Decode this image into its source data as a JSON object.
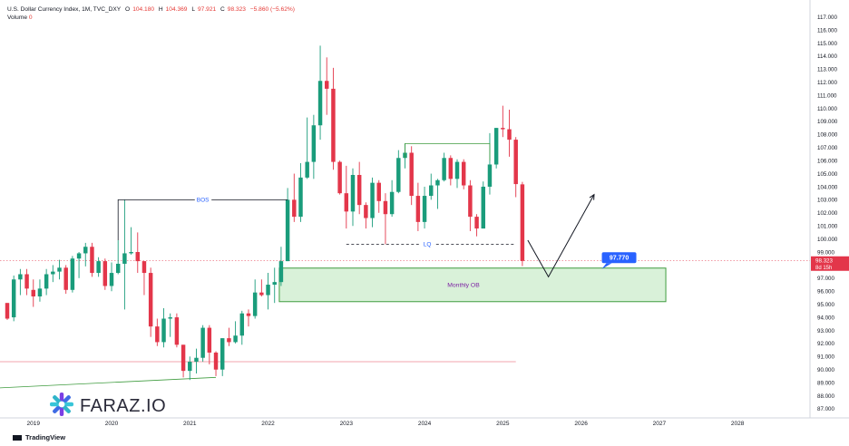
{
  "header": {
    "title": "U.S. Dollar Currency Index, 1M, TVC_DXY",
    "open_label": "O",
    "open": "104.180",
    "high_label": "H",
    "high": "104.369",
    "low_label": "L",
    "low": "97.921",
    "close_label": "C",
    "close": "98.323",
    "change": "−5.860 (−5.62%)",
    "volume_label": "Volume",
    "volume": "0"
  },
  "footer": {
    "brand": "TradingView"
  },
  "logo": {
    "text": "FARAZ.IO"
  },
  "colors": {
    "up": "#1a9c7b",
    "down": "#e3364a",
    "ob_fill": "#d9f1d9",
    "ob_stroke": "#3f9c3f",
    "accent": "#2962ff"
  },
  "chart_data": {
    "type": "candlestick",
    "title": "U.S. Dollar Currency Index, 1M, TVC_DXY",
    "interval": "1M",
    "y_ticks": [
      "87.000",
      "88.000",
      "89.000",
      "90.000",
      "91.000",
      "92.000",
      "93.000",
      "94.000",
      "95.000",
      "96.000",
      "97.000",
      "98.000",
      "99.000",
      "100.000",
      "101.000",
      "102.000",
      "103.000",
      "104.000",
      "105.000",
      "106.000",
      "107.000",
      "108.000",
      "109.000",
      "110.000",
      "111.000",
      "112.000",
      "113.000",
      "114.000",
      "115.000",
      "116.000",
      "117.000"
    ],
    "y_range": [
      86.3,
      117.6
    ],
    "x_ticks": [
      "2019",
      "2020",
      "2021",
      "2022",
      "2023",
      "2024",
      "2025",
      "2026",
      "2027",
      "2028"
    ],
    "x_range": [
      "2018-09",
      "2028-11"
    ],
    "last_price": "98.323",
    "countdown": "8d 15h",
    "candles": [
      [
        "2018-09",
        95.1,
        95.1,
        93.8,
        93.9
      ],
      [
        "2018-10",
        94.0,
        97.2,
        93.7,
        96.9
      ],
      [
        "2018-11",
        96.9,
        97.7,
        95.7,
        97.3
      ],
      [
        "2018-12",
        97.3,
        97.7,
        95.7,
        96.2
      ],
      [
        "2019-01",
        96.1,
        96.9,
        94.8,
        95.6
      ],
      [
        "2019-02",
        95.6,
        96.9,
        95.2,
        96.2
      ],
      [
        "2019-03",
        96.2,
        97.7,
        95.7,
        97.3
      ],
      [
        "2019-04",
        97.3,
        98.0,
        96.7,
        97.5
      ],
      [
        "2019-05",
        97.5,
        98.4,
        96.9,
        97.8
      ],
      [
        "2019-06",
        97.8,
        98.0,
        95.8,
        96.1
      ],
      [
        "2019-07",
        96.1,
        98.7,
        95.9,
        98.5
      ],
      [
        "2019-08",
        98.5,
        99.0,
        97.0,
        98.9
      ],
      [
        "2019-09",
        98.9,
        99.7,
        97.9,
        99.4
      ],
      [
        "2019-10",
        99.4,
        99.7,
        97.1,
        97.4
      ],
      [
        "2019-11",
        97.4,
        98.6,
        97.1,
        98.3
      ],
      [
        "2019-12",
        98.3,
        98.5,
        96.1,
        96.4
      ],
      [
        "2020-01",
        96.4,
        98.2,
        96.0,
        97.4
      ],
      [
        "2020-02",
        97.4,
        99.9,
        97.3,
        98.1
      ],
      [
        "2020-03",
        98.1,
        103.0,
        94.6,
        98.9
      ],
      [
        "2020-04",
        98.9,
        100.9,
        98.8,
        99.0
      ],
      [
        "2020-05",
        99.0,
        100.5,
        97.4,
        98.3
      ],
      [
        "2020-06",
        98.3,
        98.3,
        95.7,
        97.4
      ],
      [
        "2020-07",
        97.4,
        97.8,
        92.5,
        93.3
      ],
      [
        "2020-08",
        93.3,
        93.9,
        91.8,
        92.1
      ],
      [
        "2020-09",
        92.1,
        94.7,
        91.7,
        93.9
      ],
      [
        "2020-10",
        93.9,
        94.3,
        92.5,
        94.0
      ],
      [
        "2020-11",
        94.0,
        94.3,
        91.7,
        91.9
      ],
      [
        "2020-12",
        91.9,
        91.9,
        89.4,
        89.9
      ],
      [
        "2021-01",
        89.9,
        91.0,
        89.2,
        90.6
      ],
      [
        "2021-02",
        90.6,
        91.6,
        89.7,
        90.9
      ],
      [
        "2021-03",
        90.9,
        93.4,
        90.6,
        93.2
      ],
      [
        "2021-04",
        93.2,
        93.4,
        90.4,
        91.3
      ],
      [
        "2021-05",
        91.3,
        91.4,
        89.5,
        90.0
      ],
      [
        "2021-06",
        90.0,
        92.4,
        89.5,
        92.4
      ],
      [
        "2021-07",
        92.4,
        93.2,
        91.8,
        92.1
      ],
      [
        "2021-08",
        92.1,
        93.7,
        92.0,
        92.6
      ],
      [
        "2021-09",
        92.6,
        94.5,
        91.9,
        94.3
      ],
      [
        "2021-10",
        94.3,
        94.6,
        93.3,
        94.1
      ],
      [
        "2021-11",
        94.1,
        96.9,
        93.9,
        95.9
      ],
      [
        "2021-12",
        95.9,
        96.9,
        95.6,
        95.7
      ],
      [
        "2022-01",
        95.7,
        97.4,
        94.6,
        96.5
      ],
      [
        "2022-02",
        96.5,
        97.8,
        95.1,
        96.7
      ],
      [
        "2022-03",
        96.7,
        99.4,
        96.4,
        98.3
      ],
      [
        "2022-04",
        98.3,
        103.9,
        98.3,
        103.0
      ],
      [
        "2022-05",
        103.0,
        105.0,
        101.3,
        101.7
      ],
      [
        "2022-06",
        101.7,
        105.8,
        101.3,
        104.7
      ],
      [
        "2022-07",
        104.7,
        109.3,
        104.6,
        105.9
      ],
      [
        "2022-08",
        105.9,
        109.5,
        104.6,
        108.7
      ],
      [
        "2022-09",
        108.7,
        114.8,
        107.6,
        112.1
      ],
      [
        "2022-10",
        112.1,
        113.9,
        109.5,
        111.5
      ],
      [
        "2022-11",
        111.5,
        113.1,
        105.3,
        105.9
      ],
      [
        "2022-12",
        105.9,
        106.0,
        103.4,
        103.5
      ],
      [
        "2023-01",
        103.5,
        105.6,
        100.8,
        102.1
      ],
      [
        "2023-02",
        102.1,
        105.4,
        101.0,
        104.9
      ],
      [
        "2023-03",
        104.9,
        105.9,
        101.9,
        102.6
      ],
      [
        "2023-04",
        102.6,
        102.8,
        100.8,
        101.6
      ],
      [
        "2023-05",
        101.6,
        104.7,
        100.9,
        104.3
      ],
      [
        "2023-06",
        104.3,
        104.5,
        102.0,
        102.9
      ],
      [
        "2023-07",
        102.9,
        103.5,
        99.6,
        101.9
      ],
      [
        "2023-08",
        101.9,
        104.5,
        101.7,
        103.6
      ],
      [
        "2023-09",
        103.6,
        106.8,
        103.5,
        106.2
      ],
      [
        "2023-10",
        106.2,
        107.3,
        105.4,
        106.6
      ],
      [
        "2023-11",
        106.6,
        107.1,
        102.6,
        103.3
      ],
      [
        "2023-12",
        103.3,
        104.3,
        100.6,
        101.3
      ],
      [
        "2024-01",
        101.3,
        104.0,
        100.8,
        103.3
      ],
      [
        "2024-02",
        103.3,
        105.0,
        103.0,
        104.1
      ],
      [
        "2024-03",
        104.1,
        104.6,
        102.3,
        104.5
      ],
      [
        "2024-04",
        104.5,
        106.6,
        104.4,
        106.2
      ],
      [
        "2024-05",
        106.2,
        106.4,
        104.1,
        104.6
      ],
      [
        "2024-06",
        104.6,
        106.1,
        103.9,
        105.9
      ],
      [
        "2024-07",
        105.9,
        106.1,
        103.8,
        104.1
      ],
      [
        "2024-08",
        104.1,
        104.5,
        100.6,
        101.7
      ],
      [
        "2024-09",
        101.7,
        101.9,
        100.2,
        100.8
      ],
      [
        "2024-10",
        100.8,
        104.4,
        100.8,
        104.0
      ],
      [
        "2024-11",
        104.0,
        108.1,
        103.4,
        105.7
      ],
      [
        "2024-12",
        105.7,
        108.5,
        105.4,
        108.5
      ],
      [
        "2025-01",
        108.5,
        110.2,
        107.8,
        108.4
      ],
      [
        "2025-02",
        108.4,
        109.9,
        106.3,
        107.6
      ],
      [
        "2025-03",
        107.6,
        107.8,
        103.2,
        104.2
      ],
      [
        "2025-04",
        104.18,
        104.369,
        97.921,
        98.323
      ]
    ],
    "annotations": {
      "bos_label": "BOS",
      "bos_level": 103.0,
      "lq_label": "LQ",
      "lq_level": 99.6,
      "ob_label": "Monthly OB",
      "ob_top": 97.77,
      "ob_bottom": 95.2,
      "ob_tag": "97.770",
      "range_top_level": 107.3,
      "lower_level": 90.6
    }
  }
}
